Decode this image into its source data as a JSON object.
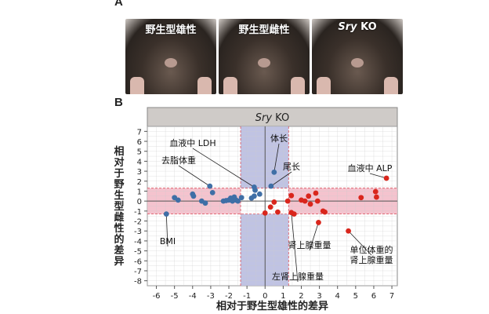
{
  "panel_a": {
    "letter": "A",
    "photos": [
      {
        "label": "野生型雄性"
      },
      {
        "label": "野生型雌性"
      },
      {
        "label_italic": "Sry",
        "label_rest": " KO"
      }
    ]
  },
  "panel_b": {
    "letter": "B"
  },
  "chart_data": {
    "type": "scatter",
    "title_italic": "Sry",
    "title_rest": " KO",
    "xlabel": "相对于野生型雄性的差异",
    "ylabel": "相对于野生型雌性的差异",
    "xlim": [
      -6.5,
      7.3
    ],
    "ylim": [
      -8.5,
      7.5
    ],
    "xticks": [
      -6,
      -5,
      -4,
      -3,
      -2,
      -1,
      0,
      1,
      2,
      3,
      4,
      5,
      6,
      7
    ],
    "yticks": [
      7,
      6,
      5,
      4,
      3,
      2,
      1,
      0,
      -1,
      -2,
      -3,
      -4,
      -5,
      -6,
      -7,
      -8
    ],
    "grid": true,
    "bands": {
      "x_range": [
        -1.35,
        1.3
      ],
      "y_range": [
        -1.3,
        1.3
      ],
      "x_band_color": "#b9bde0",
      "y_band_color": "#f2b8c6"
    },
    "colors": {
      "blue": "#3f6fa6",
      "red": "#d9261c",
      "header": "#cfcbc8"
    },
    "series": [
      {
        "color_key": "blue",
        "points": [
          [
            -5.45,
            -1.3
          ],
          [
            -5.0,
            0.35
          ],
          [
            -4.8,
            0.1
          ],
          [
            -4.0,
            0.7
          ],
          [
            -3.95,
            0.5
          ],
          [
            -3.05,
            1.5
          ],
          [
            -2.9,
            0.85
          ],
          [
            -3.5,
            0.0
          ],
          [
            -3.3,
            -0.2
          ],
          [
            -2.3,
            0.0
          ],
          [
            -2.15,
            0.05
          ],
          [
            -2.0,
            0.1
          ],
          [
            -1.9,
            0.3
          ],
          [
            -1.8,
            0.0
          ],
          [
            -1.7,
            0.4
          ],
          [
            -1.6,
            0.1
          ],
          [
            -1.5,
            0.0
          ],
          [
            -1.3,
            0.35
          ],
          [
            -0.6,
            1.4
          ],
          [
            -0.55,
            1.1
          ],
          [
            -0.75,
            0.3
          ],
          [
            -0.6,
            0.5
          ],
          [
            -0.3,
            0.7
          ],
          [
            0.5,
            2.9
          ],
          [
            0.33,
            1.5
          ]
        ]
      },
      {
        "color_key": "red",
        "points": [
          [
            6.7,
            2.3
          ],
          [
            6.1,
            0.95
          ],
          [
            6.15,
            0.4
          ],
          [
            5.3,
            0.35
          ],
          [
            1.45,
            0.55
          ],
          [
            2.0,
            0.1
          ],
          [
            2.2,
            0.0
          ],
          [
            2.5,
            -0.3
          ],
          [
            2.4,
            0.5
          ],
          [
            2.8,
            0.8
          ],
          [
            2.9,
            0.0
          ],
          [
            3.2,
            -1.0
          ],
          [
            0.5,
            -0.1
          ],
          [
            1.25,
            0.0
          ],
          [
            0.3,
            -0.6
          ],
          [
            0.0,
            -1.2
          ],
          [
            0.7,
            -1.1
          ],
          [
            1.45,
            -1.15
          ],
          [
            1.6,
            -1.3
          ],
          [
            2.95,
            -2.15
          ],
          [
            4.6,
            -3.0
          ],
          [
            3.3,
            -1.1
          ]
        ]
      }
    ],
    "annotations": [
      {
        "text": "血液中 LDH",
        "x": -0.6,
        "y": 1.4
      },
      {
        "text": "体长",
        "x": 0.5,
        "y": 2.9
      },
      {
        "text": "尾长",
        "x": 0.33,
        "y": 1.5
      },
      {
        "text": "去脂体重",
        "x": -3.05,
        "y": 1.5
      },
      {
        "text": "血液中 ALP",
        "x": 6.7,
        "y": 2.3
      },
      {
        "text": "BMI",
        "x": -5.45,
        "y": -1.3
      },
      {
        "text": "肾上腺重量",
        "x": 2.95,
        "y": -2.15
      },
      {
        "text": "单位体重的",
        "text2": "肾上腺重量",
        "x": 4.6,
        "y": -3.0
      },
      {
        "text": "左肾上腺重量",
        "x": 1.45,
        "y": -1.15
      }
    ]
  }
}
